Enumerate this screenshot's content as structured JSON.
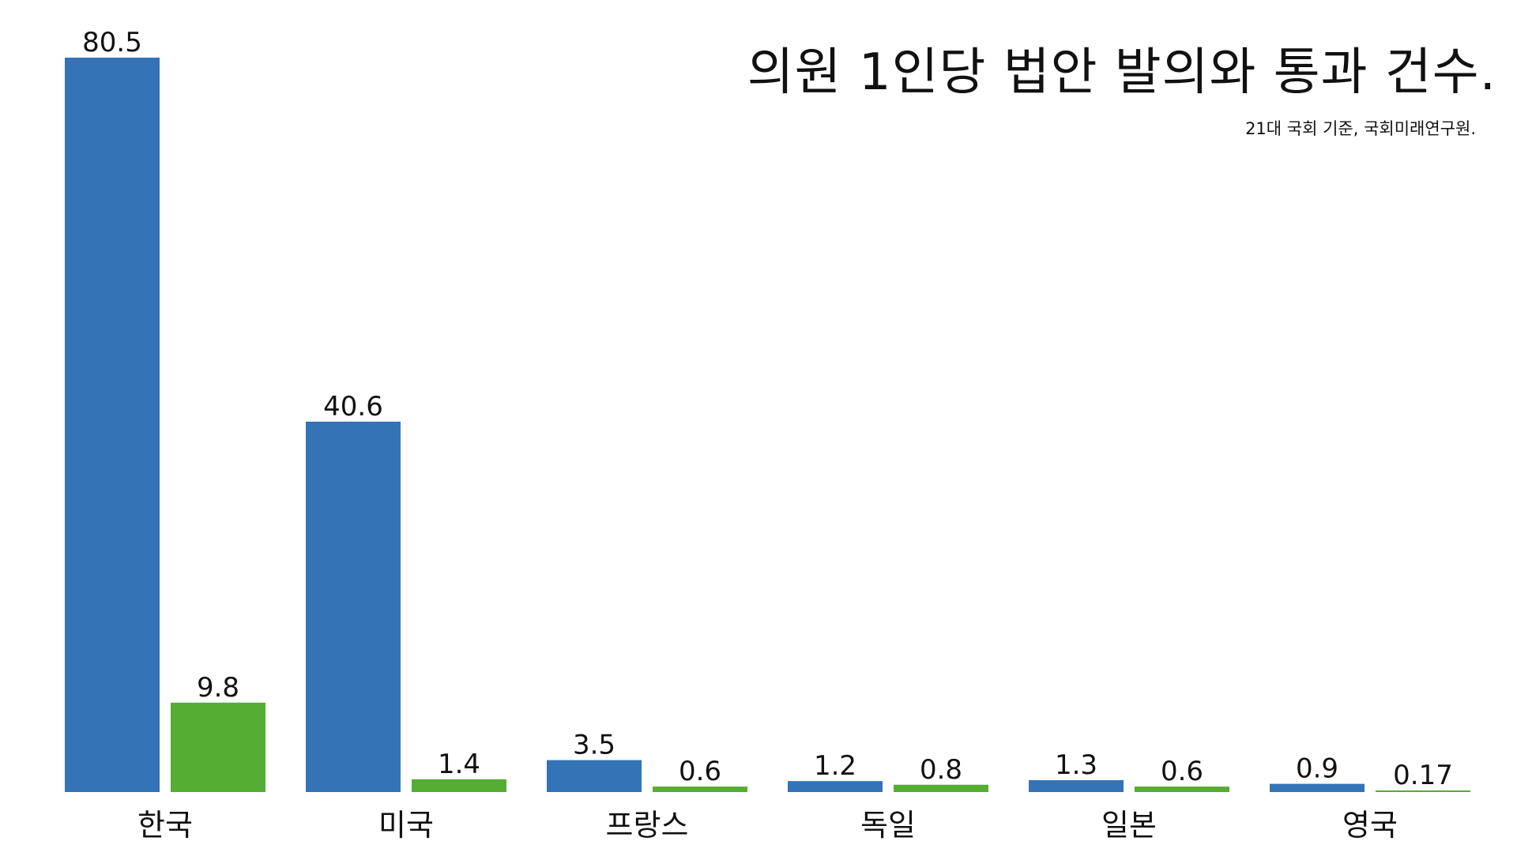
{
  "chart_data": {
    "type": "bar",
    "title": "의원 1인당 법안 발의와 통과 건수.",
    "subtitle": "21대 국회 기준, 국회미래연구원.",
    "categories": [
      "한국",
      "미국",
      "프랑스",
      "독일",
      "일본",
      "영국"
    ],
    "series": [
      {
        "values": [
          80.5,
          40.6,
          3.5,
          1.2,
          1.3,
          0.9
        ],
        "labels": [
          "80.5",
          "40.6",
          "3.5",
          "1.2",
          "1.3",
          "0.9"
        ],
        "color": "#3373b6"
      },
      {
        "values": [
          9.8,
          1.4,
          0.6,
          0.8,
          0.6,
          0.17
        ],
        "labels": [
          "9.8",
          "1.4",
          "0.6",
          "0.8",
          "0.6",
          "0.17"
        ],
        "color": "#55ad33"
      }
    ],
    "xlabel": "",
    "ylabel": "",
    "ylim": [
      0,
      80.5
    ],
    "grid": false,
    "legend": "none"
  }
}
